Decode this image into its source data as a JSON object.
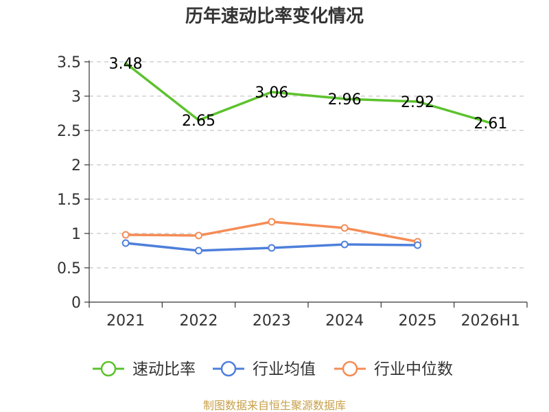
{
  "chart_data": {
    "type": "line",
    "title": "历年速动比率变化情况",
    "categories": [
      "2021",
      "2022",
      "2023",
      "2024",
      "2025",
      "2026H1"
    ],
    "ylim": [
      0,
      3.5
    ],
    "yticks": [
      "0",
      "0.5",
      "1",
      "1.5",
      "2",
      "2.5",
      "3",
      "3.5"
    ],
    "grid": true,
    "legend_position": "bottom",
    "series": [
      {
        "name": "速动比率",
        "color": "#5cc22d",
        "values": [
          3.48,
          2.65,
          3.06,
          2.96,
          2.92,
          2.61
        ],
        "labels": [
          "3.48",
          "2.65",
          "3.06",
          "2.96",
          "2.92",
          "2.61"
        ],
        "markers": false
      },
      {
        "name": "行业均值",
        "color": "#4e7fdb",
        "values": [
          0.86,
          0.75,
          0.79,
          0.84,
          0.83,
          null
        ],
        "markers": true
      },
      {
        "name": "行业中位数",
        "color": "#f58c55",
        "values": [
          0.98,
          0.97,
          1.17,
          1.08,
          0.88,
          null
        ],
        "markers": true
      }
    ]
  },
  "source": "制图数据来自恒生聚源数据库"
}
